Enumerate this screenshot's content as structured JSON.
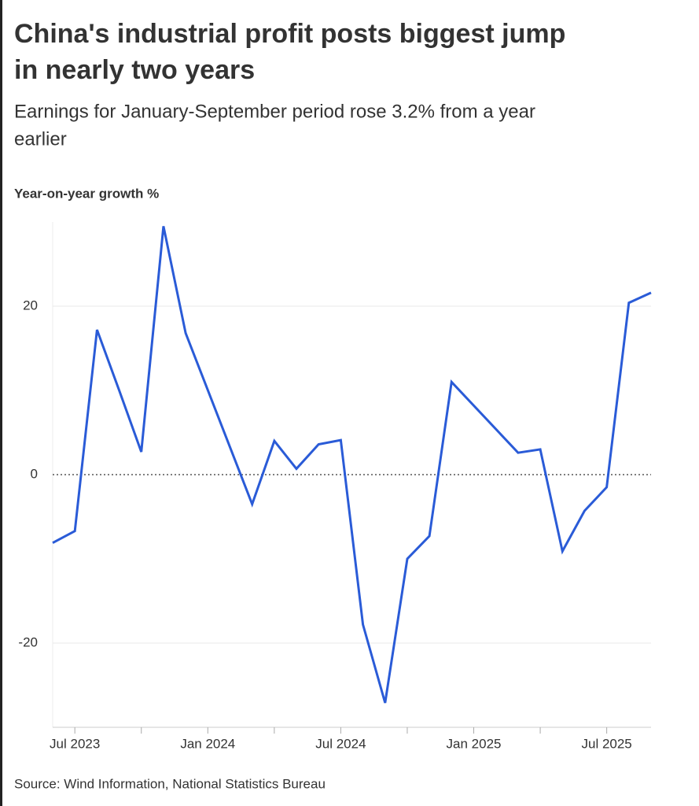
{
  "chart_data": {
    "type": "line",
    "title": "China's industrial profit posts biggest jump in nearly two years",
    "subtitle": "Earnings for January-September period rose 3.2% from a year earlier",
    "y_axis_label": "Year-on-year growth %",
    "source": "Source: Wind Information, National Statistics Bureau",
    "x": [
      "2023-06",
      "2023-07",
      "2023-08",
      "2023-09",
      "2023-10",
      "2023-11",
      "2023-12",
      "2024-03",
      "2024-04",
      "2024-05",
      "2024-06",
      "2024-07",
      "2024-08",
      "2024-09",
      "2024-10",
      "2024-11",
      "2024-12",
      "2025-03",
      "2025-04",
      "2025-05",
      "2025-06",
      "2025-07",
      "2025-08",
      "2025-09"
    ],
    "series": [
      {
        "name": "Year-on-year growth",
        "color": "#2a5bd7",
        "values": [
          -8.1,
          -6.7,
          17.2,
          10,
          2.7,
          29.5,
          16.8,
          -3.5,
          4.0,
          0.7,
          3.6,
          4.1,
          -17.8,
          -27.1,
          -10.0,
          -7.3,
          11.0,
          2.6,
          3.0,
          -9.1,
          -4.3,
          -1.5,
          20.4,
          21.6
        ]
      }
    ],
    "xlim": [
      "2023-06",
      "2025-09"
    ],
    "xticks": [
      {
        "value": "2023-07",
        "label": "Jul 2023"
      },
      {
        "value": "2024-01",
        "label": "Jan 2024"
      },
      {
        "value": "2024-07",
        "label": "Jul 2024"
      },
      {
        "value": "2025-01",
        "label": "Jan 2025"
      },
      {
        "value": "2025-07",
        "label": "Jul 2025"
      }
    ],
    "xminorticks": [
      "2023-10",
      "2024-04",
      "2024-10",
      "2025-04"
    ],
    "ylim": [
      -30,
      30
    ],
    "yticks": [
      -20,
      0,
      20
    ],
    "grid": true
  }
}
